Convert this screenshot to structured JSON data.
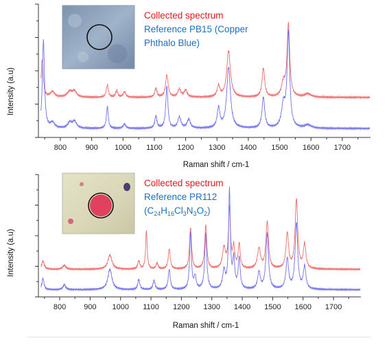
{
  "chart_data": [
    {
      "type": "line",
      "xlabel": "Raman shift / cm-1",
      "ylabel": "Intensity (a.u)",
      "xlim": [
        730,
        1790
      ],
      "ylim": [
        0,
        1.2
      ],
      "xticks": [
        800,
        900,
        1000,
        1100,
        1200,
        1300,
        1400,
        1500,
        1600,
        1700
      ],
      "legend": [
        "Collected spectrum",
        "Reference PB15 (Copper",
        "Phthalo Blue)"
      ],
      "legend_placement": "top-center",
      "inset": {
        "kind": "photo",
        "tone": "blue",
        "placement": "top-left"
      },
      "colors": {
        "collected": "#f06a6a",
        "reference": "#6f6ff0"
      },
      "series": [
        {
          "role": "collected",
          "baseline": 0.36,
          "peaks": [
            [
              742,
              0.34,
              4
            ],
            [
              775,
              0.05,
              8
            ],
            [
              830,
              0.05,
              10
            ],
            [
              845,
              0.05,
              8
            ],
            [
              950,
              0.11,
              4
            ],
            [
              980,
              0.06,
              4
            ],
            [
              1005,
              0.05,
              5
            ],
            [
              1105,
              0.08,
              4
            ],
            [
              1140,
              0.2,
              5
            ],
            [
              1180,
              0.07,
              6
            ],
            [
              1200,
              0.06,
              6
            ],
            [
              1305,
              0.1,
              5
            ],
            [
              1337,
              0.42,
              7
            ],
            [
              1448,
              0.26,
              5
            ],
            [
              1512,
              0.12,
              7
            ],
            [
              1528,
              0.65,
              5
            ],
            [
              1590,
              0.03,
              12
            ]
          ]
        },
        {
          "role": "reference",
          "baseline": 0.08,
          "peaks": [
            [
              746,
              0.8,
              4
            ],
            [
              775,
              0.05,
              8
            ],
            [
              830,
              0.05,
              8
            ],
            [
              845,
              0.06,
              8
            ],
            [
              950,
              0.2,
              3.5
            ],
            [
              1005,
              0.04,
              5
            ],
            [
              1105,
              0.11,
              4
            ],
            [
              1140,
              0.38,
              4
            ],
            [
              1180,
              0.1,
              6
            ],
            [
              1210,
              0.08,
              6
            ],
            [
              1305,
              0.18,
              5
            ],
            [
              1337,
              0.55,
              7
            ],
            [
              1448,
              0.28,
              5
            ],
            [
              1512,
              0.2,
              7
            ],
            [
              1528,
              0.85,
              5
            ],
            [
              1590,
              0.03,
              12
            ]
          ]
        }
      ]
    },
    {
      "type": "line",
      "xlabel": "Raman shift / cm-1",
      "ylabel": "Intensity (a.u)",
      "xlim": [
        730,
        1790
      ],
      "ylim": [
        0,
        1.2
      ],
      "xticks": [
        800,
        900,
        1000,
        1100,
        1200,
        1300,
        1400,
        1500,
        1600,
        1700
      ],
      "legend": [
        "Collected spectrum",
        "Reference PR112",
        "(C24H16Cl3N3O2)"
      ],
      "legend_placement": "top-center",
      "inset": {
        "kind": "photo",
        "tone": "red",
        "placement": "top-left"
      },
      "colors": {
        "collected": "#f06a6a",
        "reference": "#6f6ff0"
      },
      "series": [
        {
          "role": "collected",
          "baseline": 0.27,
          "peaks": [
            [
              745,
              0.08,
              5
            ],
            [
              815,
              0.04,
              6
            ],
            [
              965,
              0.14,
              8
            ],
            [
              1060,
              0.08,
              4
            ],
            [
              1085,
              0.38,
              3
            ],
            [
              1120,
              0.06,
              4
            ],
            [
              1160,
              0.2,
              4
            ],
            [
              1230,
              0.41,
              4
            ],
            [
              1280,
              0.43,
              4
            ],
            [
              1340,
              0.2,
              6
            ],
            [
              1358,
              0.58,
              4
            ],
            [
              1372,
              0.2,
              4
            ],
            [
              1390,
              0.24,
              4
            ],
            [
              1455,
              0.2,
              6
            ],
            [
              1482,
              0.46,
              5
            ],
            [
              1548,
              0.35,
              5
            ],
            [
              1578,
              0.68,
              5
            ],
            [
              1605,
              0.24,
              5
            ]
          ]
        },
        {
          "role": "reference",
          "baseline": 0.07,
          "peaks": [
            [
              745,
              0.11,
              4
            ],
            [
              815,
              0.05,
              5
            ],
            [
              965,
              0.2,
              8
            ],
            [
              1060,
              0.1,
              4
            ],
            [
              1110,
              0.09,
              4
            ],
            [
              1160,
              0.2,
              4
            ],
            [
              1230,
              0.56,
              3.5
            ],
            [
              1245,
              0.12,
              4
            ],
            [
              1280,
              0.55,
              4
            ],
            [
              1340,
              0.18,
              5
            ],
            [
              1358,
              0.96,
              3.5
            ],
            [
              1372,
              0.28,
              4
            ],
            [
              1390,
              0.3,
              4
            ],
            [
              1455,
              0.17,
              5
            ],
            [
              1482,
              0.55,
              5
            ],
            [
              1548,
              0.3,
              5
            ],
            [
              1578,
              0.65,
              5
            ],
            [
              1605,
              0.22,
              5
            ]
          ]
        }
      ]
    }
  ]
}
